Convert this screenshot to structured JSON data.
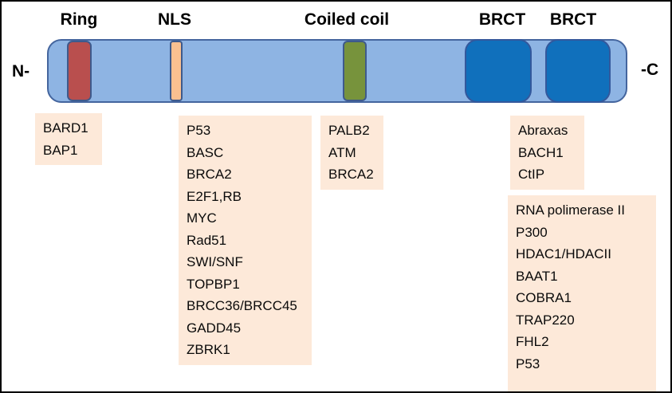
{
  "protein_map": {
    "n_terminus_label": "N-",
    "c_terminus_label": "-C",
    "bar": {
      "fill": "#8eb4e3",
      "border": "#44659e"
    },
    "domains": {
      "ring": {
        "label": "Ring",
        "color": "#b94f4e"
      },
      "nls": {
        "label": "NLS",
        "color": "#fac090"
      },
      "coiled_coil": {
        "label": "Coiled coil",
        "color": "#77933c"
      },
      "brct1": {
        "label": "BRCT",
        "color": "#1070bc"
      },
      "brct2": {
        "label": "BRCT",
        "color": "#1070bc"
      }
    }
  },
  "interactor_boxes": {
    "background": "#fde9d9",
    "ring": [
      "BARD1",
      "BAP1"
    ],
    "nls": [
      "P53",
      "BASC",
      "BRCA2",
      "E2F1,RB",
      "MYC",
      "Rad51",
      "SWI/SNF",
      "TOPBP1",
      "BRCC36/BRCC45",
      "GADD45",
      "ZBRK1"
    ],
    "coiled_coil": [
      "PALB2",
      "ATM",
      "BRCA2"
    ],
    "brct_upper": [
      "Abraxas",
      "BACH1",
      "CtIP"
    ],
    "brct_lower": [
      "RNA polimerase II",
      "P300",
      "HDAC1/HDACII",
      "BAAT1",
      "COBRA1",
      "TRAP220",
      "FHL2",
      "P53"
    ]
  }
}
